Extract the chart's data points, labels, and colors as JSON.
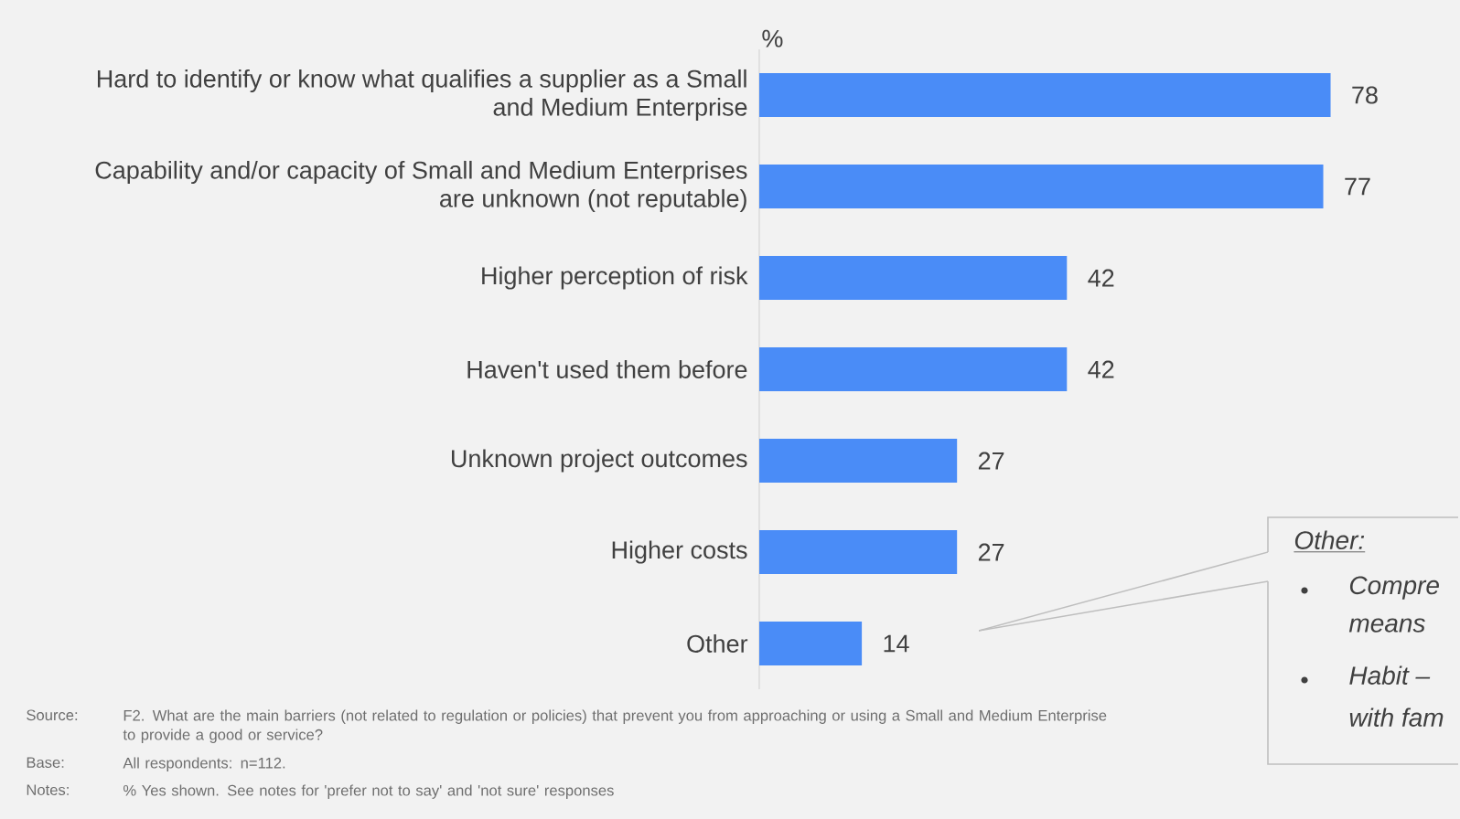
{
  "chart_data": {
    "type": "bar",
    "orientation": "horizontal",
    "categories": [
      "Hard to identify or know what qualifies a supplier as a Small and Medium Enterprise",
      "Capability and/or capacity of Small and Medium Enterprises are unknown (not reputable)",
      "Higher perception of risk",
      "Haven't used them before",
      "Unknown project outcomes",
      "Higher costs",
      "Other"
    ],
    "values": [
      78,
      77,
      42,
      42,
      27,
      27,
      14
    ],
    "color": "#4a8cf7",
    "data_labels": true,
    "xlabel": "%",
    "annotations": [
      "Source:",
      "F2. What are the main barriers (not related to regulation or policies) that prevent you from approaching or using a Small and Medium Enterprise to provide a good or service?",
      "Base:",
      "All respondents: n=112.",
      "Notes:",
      "% Yes shown. See notes for 'prefer not to say' and 'not sure' responses",
      "Other:",
      "Compre",
      "means",
      "Habit –",
      "with fam"
    ]
  }
}
